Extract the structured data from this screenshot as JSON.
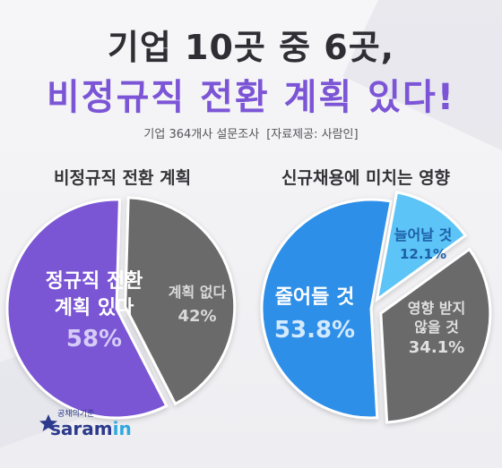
{
  "header": {
    "title_line1": "기업 10곳 중 6곳,",
    "title_line2": "비정규직 전환 계획 있다!",
    "subtitle": "기업 364개사 설문조사",
    "source": "[자료제공: 사람인]"
  },
  "colors": {
    "purple": "#7a55d4",
    "gray": "#6b6b6b",
    "blue": "#2f8fe8",
    "light_blue": "#5cc4f6"
  },
  "chart_data": [
    {
      "type": "pie",
      "title": "비정규직 전환 계획",
      "slices": [
        {
          "label": "정규직 전환 계획 있다",
          "label_lines": [
            "정규직 전환",
            "계획 있다"
          ],
          "value": 58,
          "display": "58%"
        },
        {
          "label": "계획 없다",
          "label_lines": [
            "계획 없다"
          ],
          "value": 42,
          "display": "42%"
        }
      ]
    },
    {
      "type": "pie",
      "title": "신규채용에 미치는 영향",
      "slices": [
        {
          "label": "줄어들 것",
          "label_lines": [
            "줄어들 것"
          ],
          "value": 53.8,
          "display": "53.8%"
        },
        {
          "label": "늘어날 것",
          "label_lines": [
            "늘어날 것"
          ],
          "value": 12.1,
          "display": "12.1%"
        },
        {
          "label": "영향 받지 않을 것",
          "label_lines": [
            "영향 받지",
            "않을 것"
          ],
          "value": 34.1,
          "display": "34.1%"
        }
      ]
    }
  ],
  "logo": {
    "tagline": "공채의기준",
    "brand_main": "saram",
    "brand_accent": "in"
  }
}
